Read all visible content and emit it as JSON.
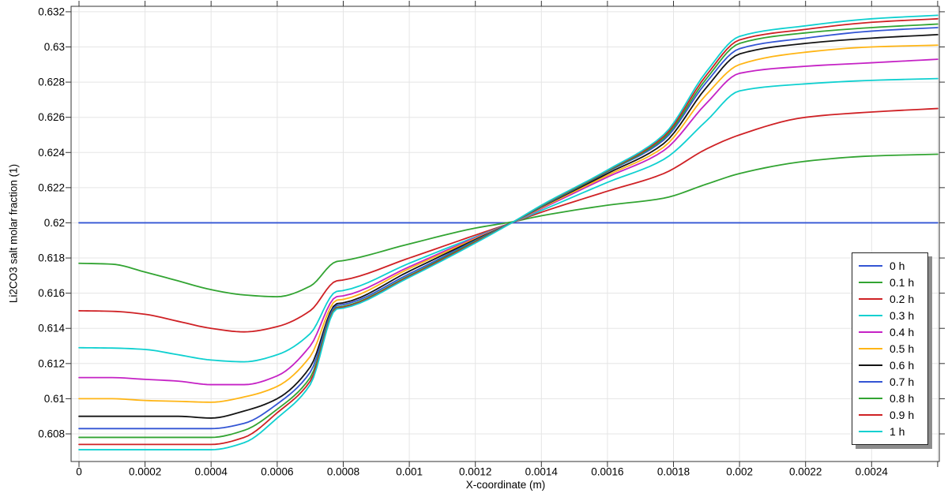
{
  "chart_data": {
    "type": "line",
    "title": "",
    "xlabel": "X-coordinate (m)",
    "ylabel": "Li2CO3 salt molar fraction (1)",
    "xlim": [
      -2.4e-05,
      0.002605
    ],
    "ylim": [
      0.60643,
      0.63231
    ],
    "grid": true,
    "legend_position": "inside-bottom-right",
    "grid_color": "#e5e5e5",
    "border_color": "#333333",
    "xticks": {
      "values": [
        0,
        0.0002,
        0.0004,
        0.0006,
        0.0008,
        0.001,
        0.0012,
        0.0014,
        0.0016,
        0.0018,
        0.002,
        0.0022,
        0.0024,
        0.0026
      ],
      "labels": [
        "0",
        "0.0002",
        "0.0004",
        "0.0006",
        "0.0008",
        "0.001",
        "0.0012",
        "0.0014",
        "0.0016",
        "0.0018",
        "0.002",
        "0.0022",
        "0.0024",
        ""
      ]
    },
    "yticks": {
      "values": [
        0.608,
        0.61,
        0.612,
        0.614,
        0.616,
        0.618,
        0.62,
        0.622,
        0.624,
        0.626,
        0.628,
        0.63,
        0.632
      ],
      "labels": [
        "0.608",
        "0.61",
        "0.612",
        "0.614",
        "0.616",
        "0.618",
        "0.62",
        "0.622",
        "0.624",
        "0.626",
        "0.628",
        "0.63",
        "0.632"
      ]
    },
    "x": [
      0,
      0.0001,
      0.0002,
      0.0003,
      0.0004,
      0.0005,
      0.0006,
      0.0007,
      0.00078,
      0.0008,
      0.001,
      0.0012,
      0.00131,
      0.0014,
      0.0016,
      0.00177,
      0.0019,
      0.002,
      0.0022,
      0.0024,
      0.0026
    ],
    "series": [
      {
        "label": "0 h",
        "color": "#3355d4",
        "y": [
          0.62,
          0.62,
          0.62,
          0.62,
          0.62,
          0.62,
          0.62,
          0.62,
          0.62,
          0.62,
          0.62,
          0.62,
          0.62,
          0.62,
          0.62,
          0.62,
          0.62,
          0.62,
          0.62,
          0.62,
          0.62
        ]
      },
      {
        "label": "0.1 h",
        "color": "#32a432",
        "y": [
          0.6177,
          0.61765,
          0.6172,
          0.6167,
          0.6162,
          0.6159,
          0.6158,
          0.6164,
          0.6178,
          0.61785,
          0.6188,
          0.6197,
          0.62005,
          0.6204,
          0.621,
          0.6214,
          0.6222,
          0.6228,
          0.6235,
          0.6238,
          0.6239
        ]
      },
      {
        "label": "0.2 h",
        "color": "#cf2125",
        "y": [
          0.615,
          0.61497,
          0.6148,
          0.6144,
          0.614,
          0.6138,
          0.6141,
          0.615,
          0.6167,
          0.61675,
          0.618,
          0.6193,
          0.62,
          0.6206,
          0.6218,
          0.6228,
          0.6242,
          0.625,
          0.626,
          0.6263,
          0.6265
        ]
      },
      {
        "label": "0.3 h",
        "color": "#0fd0d0",
        "y": [
          0.6129,
          0.61288,
          0.6128,
          0.6125,
          0.6122,
          0.6121,
          0.6125,
          0.6137,
          0.6161,
          0.61615,
          0.6177,
          0.6192,
          0.62,
          0.6207,
          0.6223,
          0.6236,
          0.6258,
          0.6275,
          0.6279,
          0.6281,
          0.6282
        ]
      },
      {
        "label": "0.4 h",
        "color": "#c522c5",
        "y": [
          0.6112,
          0.6112,
          0.6111,
          0.611,
          0.6108,
          0.6108,
          0.6113,
          0.613,
          0.6158,
          0.61585,
          0.6175,
          0.61915,
          0.62,
          0.6208,
          0.6226,
          0.6241,
          0.6268,
          0.6285,
          0.6289,
          0.6291,
          0.6293
        ]
      },
      {
        "label": "0.5 h",
        "color": "#ffb515",
        "y": [
          0.61,
          0.61,
          0.6099,
          0.60985,
          0.6098,
          0.6101,
          0.6107,
          0.6124,
          0.6156,
          0.61565,
          0.6174,
          0.6191,
          0.62,
          0.62085,
          0.6227,
          0.6243,
          0.6273,
          0.629,
          0.6297,
          0.63,
          0.6301
        ]
      },
      {
        "label": "0.6 h",
        "color": "#141414",
        "y": [
          0.609,
          0.609,
          0.609,
          0.609,
          0.6089,
          0.6093,
          0.61,
          0.6118,
          0.6154,
          0.61545,
          0.61725,
          0.61905,
          0.62,
          0.6209,
          0.6228,
          0.6245,
          0.6277,
          0.6296,
          0.6302,
          0.6305,
          0.6307
        ]
      },
      {
        "label": "0.7 h",
        "color": "#3355d4",
        "y": [
          0.6083,
          0.6083,
          0.6083,
          0.6083,
          0.6083,
          0.6086,
          0.6097,
          0.6115,
          0.6153,
          0.61535,
          0.6171,
          0.619,
          0.62,
          0.62092,
          0.6229,
          0.6247,
          0.628,
          0.6299,
          0.6305,
          0.6309,
          0.6311
        ]
      },
      {
        "label": "0.8 h",
        "color": "#32a432",
        "y": [
          0.6078,
          0.6078,
          0.6078,
          0.6078,
          0.6078,
          0.6082,
          0.6094,
          0.6112,
          0.6152,
          0.61525,
          0.617,
          0.61895,
          0.62,
          0.62095,
          0.62293,
          0.6248,
          0.6282,
          0.6302,
          0.6308,
          0.6311,
          0.6313
        ]
      },
      {
        "label": "0.9 h",
        "color": "#cf2125",
        "y": [
          0.6074,
          0.6074,
          0.6074,
          0.6074,
          0.6074,
          0.6078,
          0.6092,
          0.611,
          0.61515,
          0.6152,
          0.61695,
          0.6189,
          0.62,
          0.62098,
          0.62297,
          0.6249,
          0.6284,
          0.6304,
          0.631,
          0.6314,
          0.6316
        ]
      },
      {
        "label": "1 h",
        "color": "#0fd0d0",
        "y": [
          0.6071,
          0.6071,
          0.6071,
          0.6071,
          0.6071,
          0.6075,
          0.6089,
          0.6108,
          0.6151,
          0.61515,
          0.6169,
          0.61885,
          0.62,
          0.621,
          0.623,
          0.625,
          0.6286,
          0.6306,
          0.6312,
          0.6316,
          0.6318
        ]
      }
    ]
  }
}
